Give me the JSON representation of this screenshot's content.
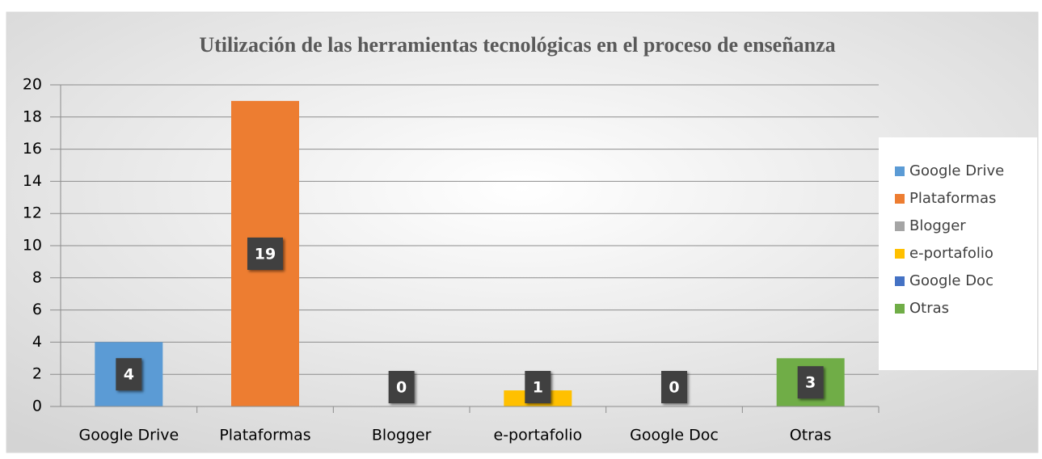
{
  "chart_data": {
    "type": "bar",
    "title": "Utilización de las herramientas tecnológicas en el proceso de enseñanza",
    "categories": [
      "Google Drive",
      "Plataformas",
      "Blogger",
      "e-portafolio",
      "Google Doc",
      "Otras"
    ],
    "values": [
      4,
      19,
      0,
      1,
      0,
      3
    ],
    "colors": [
      "#5b9bd5",
      "#ed7d31",
      "#a5a5a5",
      "#ffc000",
      "#4472c4",
      "#70ad47"
    ],
    "ylim": [
      0,
      20
    ],
    "yticks": [
      0,
      2,
      4,
      6,
      8,
      10,
      12,
      14,
      16,
      18,
      20
    ],
    "grid": true,
    "legend": "right"
  }
}
